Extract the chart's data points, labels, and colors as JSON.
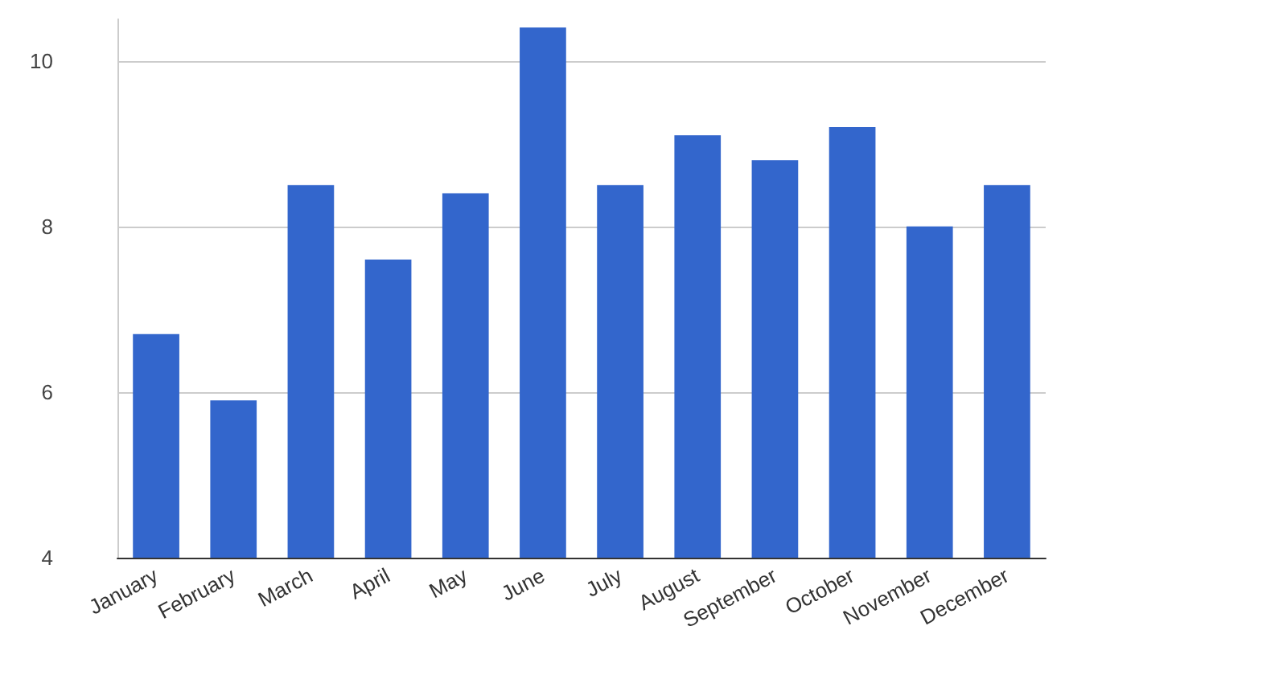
{
  "chart_data": {
    "type": "bar",
    "categories": [
      "January",
      "February",
      "March",
      "April",
      "May",
      "June",
      "July",
      "August",
      "September",
      "October",
      "November",
      "December"
    ],
    "values": [
      6.7,
      5.9,
      8.5,
      7.6,
      8.4,
      10.4,
      8.5,
      9.1,
      8.8,
      9.2,
      8.0,
      8.5
    ],
    "color": "#3366cc",
    "ylim": [
      4,
      10.5
    ],
    "yticks": [
      4,
      6,
      8,
      10
    ],
    "grid": "y"
  }
}
